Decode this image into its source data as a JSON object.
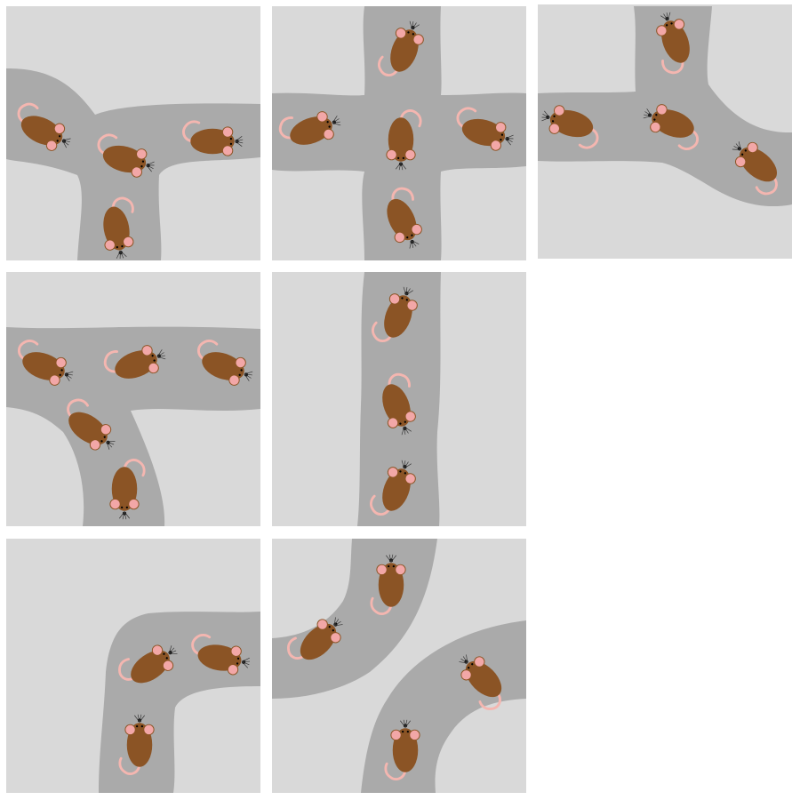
{
  "puzzle": {
    "tiles": [
      {
        "name": "tile-1",
        "shape": "t-junction",
        "mice": 4
      },
      {
        "name": "tile-2",
        "shape": "cross",
        "mice": 5
      },
      {
        "name": "tile-3",
        "shape": "t-junction",
        "mice": 4
      },
      {
        "name": "tile-4",
        "shape": "t-junction",
        "mice": 5
      },
      {
        "name": "tile-5",
        "shape": "straight",
        "mice": 3
      },
      {
        "name": "tile-6",
        "shape": "corner",
        "mice": 3
      },
      {
        "name": "tile-7",
        "shape": "double-corner",
        "mice": 4
      }
    ]
  },
  "colors": {
    "background": "#d9d9d9",
    "tunnel": "#aaaaaa",
    "mouse_body": "#8b5425",
    "mouse_ear": "#f2a7a7",
    "mouse_tail": "#f4b6b0"
  },
  "icons": {
    "mouse": "mouse-icon"
  }
}
